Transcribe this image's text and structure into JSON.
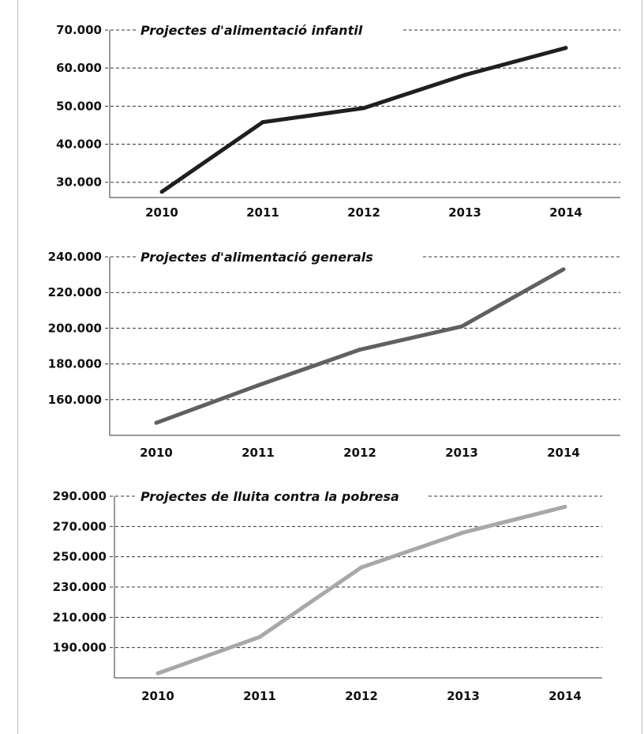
{
  "chart_data": [
    {
      "type": "line",
      "title": "Projectes d'alimentació infantil",
      "categories": [
        "2010",
        "2011",
        "2012",
        "2013",
        "2014"
      ],
      "values": [
        27500,
        45800,
        49500,
        58200,
        65300
      ],
      "ylim": [
        26000,
        70000
      ],
      "yticks": [
        30000,
        40000,
        50000,
        60000,
        70000
      ],
      "ytick_labels": [
        "30.000",
        "40.000",
        "50.000",
        "60.000",
        "70.000"
      ],
      "color": "#1f1f1f",
      "grid": true
    },
    {
      "type": "line",
      "title": "Projectes d'alimentació generals",
      "categories": [
        "2010",
        "2011",
        "2012",
        "2013",
        "2014"
      ],
      "values": [
        147000,
        168000,
        188000,
        201000,
        233000
      ],
      "ylim": [
        140000,
        240000
      ],
      "yticks": [
        160000,
        180000,
        200000,
        220000,
        240000
      ],
      "ytick_labels": [
        "160.000",
        "180.000",
        "200.000",
        "220.000",
        "240.000"
      ],
      "color": "#606060",
      "grid": true
    },
    {
      "type": "line",
      "title": "Projectes de lluita contra la pobresa",
      "categories": [
        "2010",
        "2011",
        "2012",
        "2013",
        "2014"
      ],
      "values": [
        173000,
        197000,
        243000,
        266000,
        283000
      ],
      "ylim": [
        170000,
        290000
      ],
      "yticks": [
        190000,
        210000,
        230000,
        250000,
        270000,
        290000
      ],
      "ytick_labels": [
        "190.000",
        "210.000",
        "230.000",
        "250.000",
        "270.000",
        "290.000"
      ],
      "color": "#a8a8a8",
      "grid": true
    }
  ]
}
